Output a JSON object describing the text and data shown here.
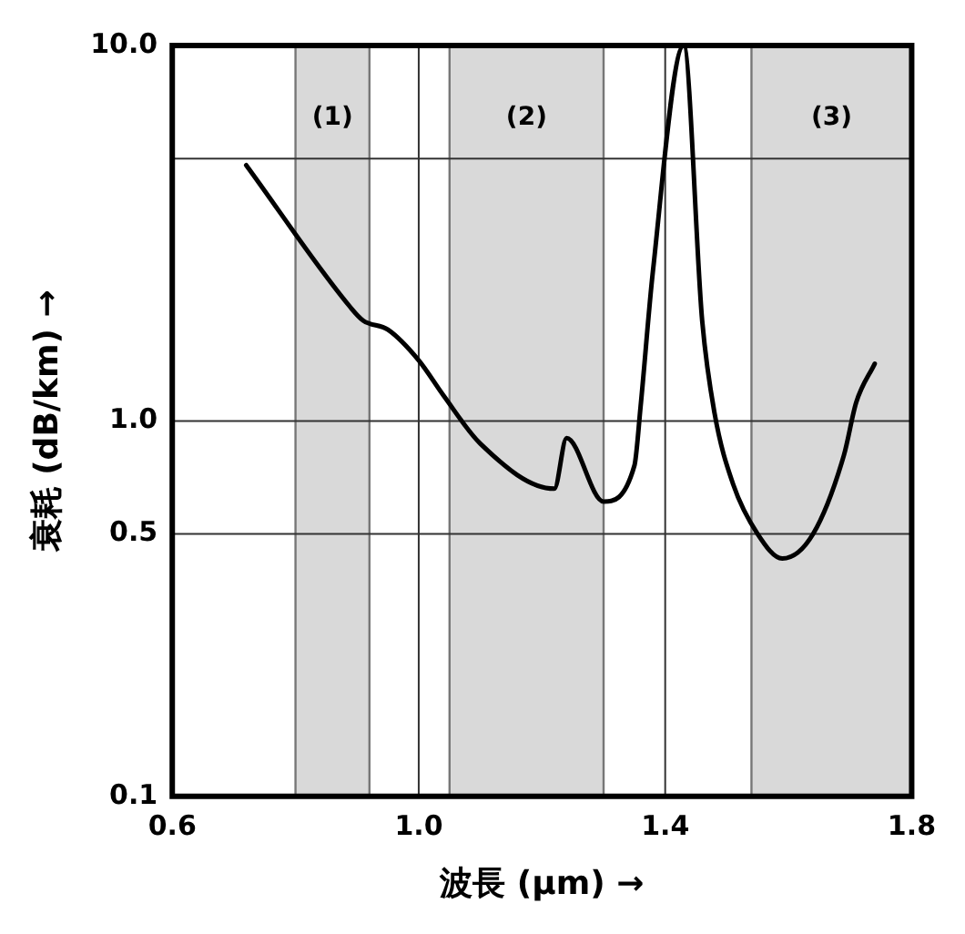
{
  "chart_data": {
    "type": "line",
    "xlabel": "波長 (µm) →",
    "ylabel": "衰耗 (dB/km) →",
    "x": [
      0.72,
      0.89,
      0.91,
      0.95,
      1.0,
      1.04,
      1.1,
      1.22,
      1.24,
      1.3,
      1.35,
      1.36,
      1.38,
      1.43,
      1.46,
      1.48,
      1.51,
      1.55,
      1.59,
      1.64,
      1.69,
      1.71,
      1.74
    ],
    "series": [
      {
        "color": "#000000",
        "values": [
          4.8,
          2.0,
          1.85,
          1.75,
          1.45,
          1.17,
          0.87,
          0.66,
          0.9,
          0.61,
          0.76,
          1.09,
          2.5,
          10,
          1.85,
          1.05,
          0.68,
          0.5,
          0.43,
          0.5,
          0.81,
          1.12,
          1.42
        ]
      }
    ],
    "xlim": [
      0.6,
      1.8
    ],
    "xticks": [
      {
        "value": 0.6,
        "label": "0.6"
      },
      {
        "value": 1.0,
        "label": "1.0"
      },
      {
        "value": 1.4,
        "label": "1.4"
      },
      {
        "value": 1.8,
        "label": "1.8"
      }
    ],
    "ylim": [
      0.1,
      10
    ],
    "yticks": [
      {
        "value": 0.1,
        "label": "0.1"
      },
      {
        "value": 0.5,
        "label": "0.5"
      },
      {
        "value": 1,
        "label": "1.0"
      },
      {
        "value": 5,
        "label": null
      },
      {
        "value": 10,
        "label": "10.0"
      }
    ],
    "log": "y",
    "grid": true,
    "legend": false,
    "marker": "none",
    "line_style": "solid",
    "bands": [
      {
        "axis": "x",
        "from": 0.8,
        "to": 0.92,
        "label": "(1)",
        "color": "#d9d9d9"
      },
      {
        "axis": "x",
        "from": 1.05,
        "to": 1.3,
        "label": "(2)",
        "color": "#d9d9d9"
      },
      {
        "axis": "x",
        "from": 1.54,
        "to": 1.8,
        "label": "(3)",
        "color": "#d9d9d9"
      }
    ]
  }
}
